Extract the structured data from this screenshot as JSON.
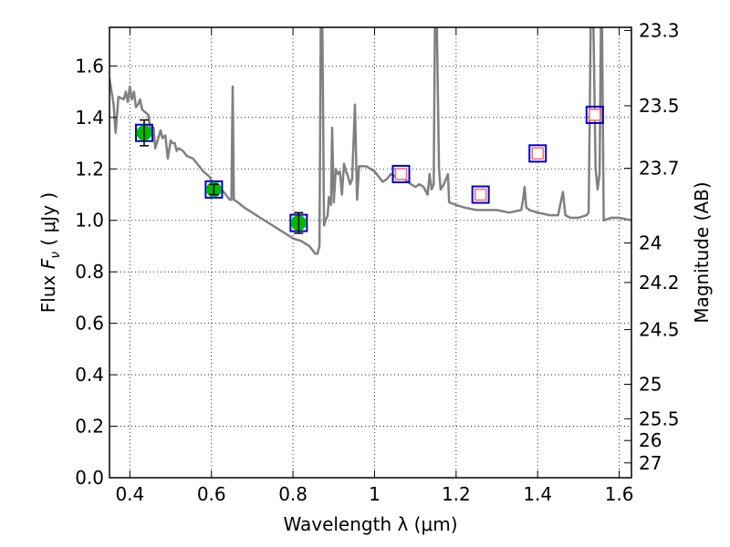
{
  "chart_data": {
    "type": "scatter",
    "xlabel": "Wavelength  λ (μm)",
    "ylabel": "Flux  Fν  ( μJy )",
    "ylabel_parts": {
      "prefix": "Flux  ",
      "var": "F",
      "sub": "ν",
      "unit": "  ( μJy )"
    },
    "y2label": "Magnitude (AB)",
    "xlim": [
      0.35,
      1.63
    ],
    "ylim": [
      0.0,
      1.75
    ],
    "grid": true,
    "x_ticks": [
      0.4,
      0.6,
      0.8,
      1.0,
      1.2,
      1.4,
      1.6
    ],
    "x_tick_labels": [
      "0.4",
      "0.6",
      "0.8",
      "1",
      "1.2",
      "1.4",
      "1.6"
    ],
    "y_ticks": [
      0.0,
      0.2,
      0.4,
      0.6,
      0.8,
      1.0,
      1.2,
      1.4,
      1.6
    ],
    "y_tick_labels": [
      "0.0",
      "0.2",
      "0.4",
      "0.6",
      "0.8",
      "1.0",
      "1.2",
      "1.4",
      "1.6"
    ],
    "y2_tick_labels": [
      "23.3",
      "23.5",
      "23.7",
      "24",
      "24.2",
      "24.5",
      "25",
      "25.5",
      "26",
      "27"
    ],
    "y2_tick_values": [
      23.3,
      23.5,
      23.7,
      24.0,
      24.2,
      24.5,
      25.0,
      25.5,
      26.0,
      27.0
    ],
    "series": [
      {
        "kind": "model_sed",
        "color": "#808080",
        "points": [
          [
            0.35,
            1.55
          ],
          [
            0.36,
            1.45
          ],
          [
            0.365,
            1.34
          ],
          [
            0.372,
            1.48
          ],
          [
            0.385,
            1.47
          ],
          [
            0.39,
            1.5
          ],
          [
            0.395,
            1.46
          ],
          [
            0.4,
            1.52
          ],
          [
            0.405,
            1.47
          ],
          [
            0.41,
            1.5
          ],
          [
            0.415,
            1.44
          ],
          [
            0.42,
            1.45
          ],
          [
            0.425,
            1.47
          ],
          [
            0.43,
            1.43
          ],
          [
            0.438,
            1.42
          ],
          [
            0.445,
            1.41
          ],
          [
            0.452,
            1.34
          ],
          [
            0.458,
            1.36
          ],
          [
            0.462,
            1.28
          ],
          [
            0.468,
            1.31
          ],
          [
            0.475,
            1.35
          ],
          [
            0.48,
            1.32
          ],
          [
            0.487,
            1.33
          ],
          [
            0.493,
            1.24
          ],
          [
            0.5,
            1.31
          ],
          [
            0.505,
            1.3
          ],
          [
            0.51,
            1.3
          ],
          [
            0.515,
            1.27
          ],
          [
            0.52,
            1.28
          ],
          [
            0.53,
            1.27
          ],
          [
            0.54,
            1.25
          ],
          [
            0.555,
            1.24
          ],
          [
            0.57,
            1.21
          ],
          [
            0.58,
            1.19
          ],
          [
            0.595,
            1.17
          ],
          [
            0.605,
            1.14
          ],
          [
            0.615,
            1.1
          ],
          [
            0.625,
            1.12
          ],
          [
            0.635,
            1.1
          ],
          [
            0.645,
            1.08
          ],
          [
            0.649,
            1.08
          ],
          [
            0.652,
            1.52
          ],
          [
            0.655,
            1.08
          ],
          [
            0.665,
            1.07
          ],
          [
            0.68,
            1.05
          ],
          [
            0.7,
            1.03
          ],
          [
            0.72,
            1.01
          ],
          [
            0.74,
            0.99
          ],
          [
            0.76,
            0.97
          ],
          [
            0.78,
            0.95
          ],
          [
            0.8,
            0.93
          ],
          [
            0.82,
            0.92
          ],
          [
            0.84,
            0.9
          ],
          [
            0.85,
            0.88
          ],
          [
            0.855,
            0.87
          ],
          [
            0.86,
            0.87
          ],
          [
            0.865,
            0.9
          ],
          [
            0.868,
            1.75
          ],
          [
            0.872,
            1.75
          ],
          [
            0.876,
            0.98
          ],
          [
            0.88,
            1.0
          ],
          [
            0.885,
            1.02
          ],
          [
            0.888,
            1.09
          ],
          [
            0.893,
            1.06
          ],
          [
            0.896,
            1.36
          ],
          [
            0.9,
            1.07
          ],
          [
            0.905,
            1.2
          ],
          [
            0.91,
            1.18
          ],
          [
            0.915,
            1.19
          ],
          [
            0.92,
            1.1
          ],
          [
            0.925,
            1.22
          ],
          [
            0.93,
            1.19
          ],
          [
            0.935,
            1.17
          ],
          [
            0.94,
            1.14
          ],
          [
            0.945,
            1.16
          ],
          [
            0.952,
            1.45
          ],
          [
            0.957,
            1.08
          ],
          [
            0.962,
            1.21
          ],
          [
            0.97,
            1.21
          ],
          [
            0.98,
            1.21
          ],
          [
            0.99,
            1.2
          ],
          [
            1.0,
            1.19
          ],
          [
            1.01,
            1.17
          ],
          [
            1.02,
            1.15
          ],
          [
            1.03,
            1.16
          ],
          [
            1.04,
            1.18
          ],
          [
            1.05,
            1.17
          ],
          [
            1.06,
            1.16
          ],
          [
            1.07,
            1.17
          ],
          [
            1.08,
            1.15
          ],
          [
            1.09,
            1.14
          ],
          [
            1.1,
            1.13
          ],
          [
            1.11,
            1.14
          ],
          [
            1.12,
            1.13
          ],
          [
            1.13,
            1.1
          ],
          [
            1.135,
            1.18
          ],
          [
            1.14,
            1.12
          ],
          [
            1.145,
            1.14
          ],
          [
            1.148,
            1.75
          ],
          [
            1.153,
            1.75
          ],
          [
            1.158,
            1.2
          ],
          [
            1.162,
            1.12
          ],
          [
            1.17,
            1.14
          ],
          [
            1.18,
            1.18
          ],
          [
            1.183,
            1.07
          ],
          [
            1.2,
            1.06
          ],
          [
            1.22,
            1.05
          ],
          [
            1.25,
            1.04
          ],
          [
            1.28,
            1.04
          ],
          [
            1.3,
            1.04
          ],
          [
            1.33,
            1.03
          ],
          [
            1.36,
            1.04
          ],
          [
            1.365,
            1.09
          ],
          [
            1.368,
            1.13
          ],
          [
            1.372,
            1.05
          ],
          [
            1.38,
            1.04
          ],
          [
            1.4,
            1.03
          ],
          [
            1.43,
            1.02
          ],
          [
            1.45,
            1.02
          ],
          [
            1.458,
            1.08
          ],
          [
            1.462,
            1.11
          ],
          [
            1.468,
            1.02
          ],
          [
            1.48,
            1.01
          ],
          [
            1.5,
            1.01
          ],
          [
            1.52,
            1.02
          ],
          [
            1.525,
            1.03
          ],
          [
            1.53,
            1.75
          ],
          [
            1.537,
            1.75
          ],
          [
            1.542,
            1.2
          ],
          [
            1.547,
            1.12
          ],
          [
            1.552,
            1.18
          ],
          [
            1.555,
            1.75
          ],
          [
            1.558,
            1.75
          ],
          [
            1.562,
            1.0
          ],
          [
            1.58,
            1.01
          ],
          [
            1.6,
            1.01
          ],
          [
            1.63,
            1.0
          ]
        ]
      },
      {
        "kind": "model_bandpass",
        "color": "#0000cc",
        "points": [
          {
            "x": 0.435,
            "y": 1.34
          },
          {
            "x": 0.606,
            "y": 1.12
          },
          {
            "x": 0.814,
            "y": 0.99
          },
          {
            "x": 1.065,
            "y": 1.18
          },
          {
            "x": 1.26,
            "y": 1.1
          },
          {
            "x": 1.4,
            "y": 1.26
          },
          {
            "x": 1.54,
            "y": 1.41
          }
        ]
      },
      {
        "kind": "observed",
        "color": "#00bb00",
        "points": [
          {
            "x": 0.435,
            "y": 1.34,
            "yerr": 0.05
          },
          {
            "x": 0.606,
            "y": 1.12,
            "yerr": 0.02
          },
          {
            "x": 0.814,
            "y": 0.99,
            "yerr": 0.04
          }
        ]
      },
      {
        "kind": "upper_limit_or_predicted",
        "color": "#ff6666",
        "points": [
          {
            "x": 1.065,
            "y": 1.18
          },
          {
            "x": 1.26,
            "y": 1.1
          },
          {
            "x": 1.4,
            "y": 1.26
          },
          {
            "x": 1.54,
            "y": 1.41
          }
        ]
      }
    ]
  }
}
